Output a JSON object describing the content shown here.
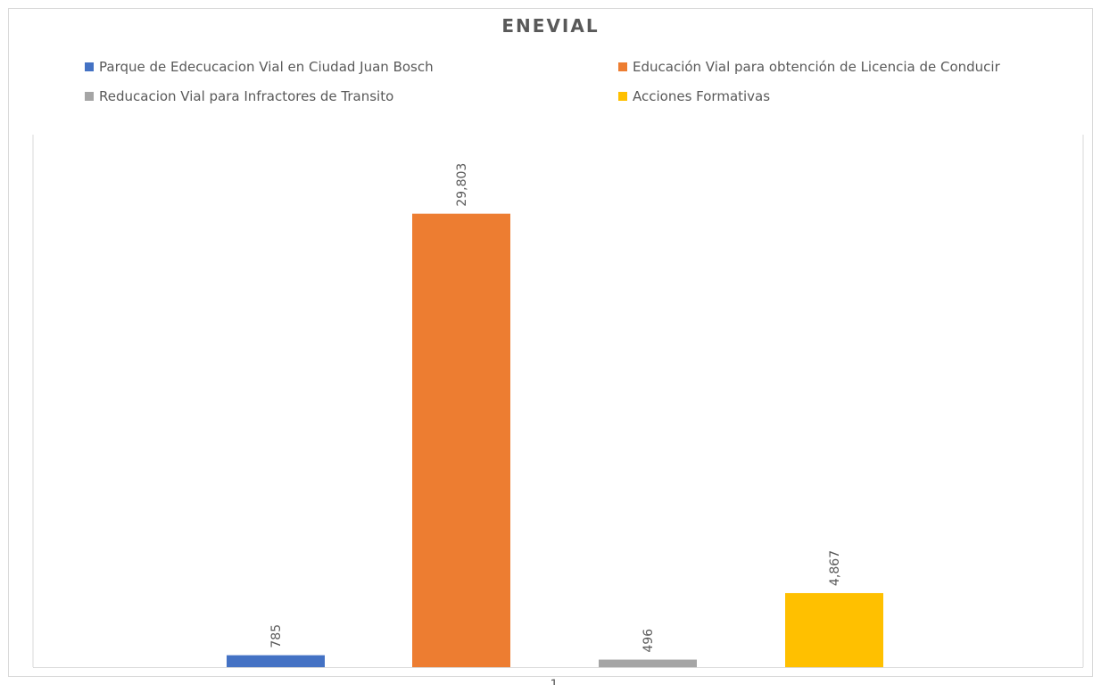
{
  "chart_data": {
    "type": "bar",
    "title": "ENEVIAL",
    "categories": [
      "1"
    ],
    "series": [
      {
        "name": "Parque de Edecucacion Vial en Ciudad Juan Bosch",
        "values": [
          785
        ],
        "color": "#4472c4"
      },
      {
        "name": "Educación Vial para obtención de Licencia de Conducir",
        "values": [
          29803
        ],
        "color": "#ed7d31"
      },
      {
        "name": "Reducacion Vial para Infractores de Transito",
        "values": [
          496
        ],
        "color": "#a5a5a5"
      },
      {
        "name": "Acciones Formativas",
        "values": [
          4867
        ],
        "color": "#ffc000"
      }
    ],
    "data_labels": [
      "785",
      "29,803",
      "496",
      "4,867"
    ],
    "ylim": [
      0,
      35000
    ],
    "grid": false,
    "legend_position": "top",
    "xlabel": "",
    "ylabel": ""
  }
}
